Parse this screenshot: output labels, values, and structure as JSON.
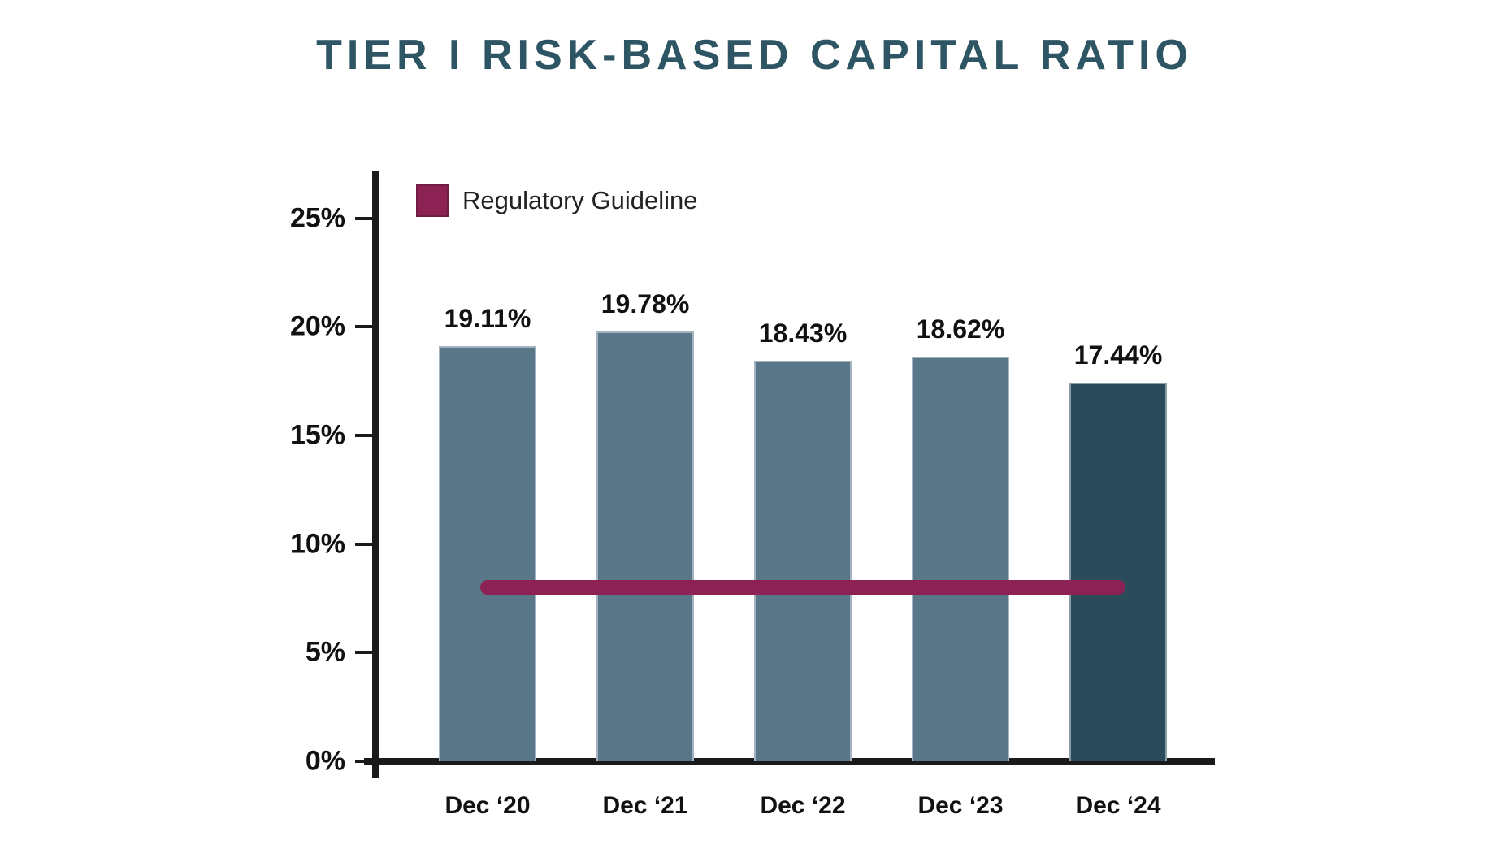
{
  "chart_data": {
    "type": "bar",
    "title": "TIER I RISK-BASED CAPITAL RATIO",
    "categories": [
      "Dec ‘20",
      "Dec ‘21",
      "Dec ‘22",
      "Dec ‘23",
      "Dec ‘24"
    ],
    "values": [
      19.11,
      19.78,
      18.43,
      18.62,
      17.44
    ],
    "value_labels": [
      "19.11%",
      "19.78%",
      "18.43%",
      "18.62%",
      "17.44%"
    ],
    "xlabel": "",
    "ylabel": "",
    "ylim": [
      0,
      27.2
    ],
    "y_ticks": [
      {
        "value": 0,
        "label": "0%"
      },
      {
        "value": 5,
        "label": "5%"
      },
      {
        "value": 10,
        "label": "10%"
      },
      {
        "value": 15,
        "label": "15%"
      },
      {
        "value": 20,
        "label": "20%"
      },
      {
        "value": 25,
        "label": "25%"
      }
    ],
    "grid": false,
    "legend_position": "top-left-inside",
    "guideline": {
      "label": "Regulatory Guideline",
      "value": 8
    },
    "colors": {
      "bar": "#5A7689",
      "bar_highlight": "#2A4C5A",
      "guideline": "#8C2153",
      "title": "#2E5564",
      "axis": "#1A1A1A",
      "text": "#111111"
    },
    "highlight_index": 4
  }
}
